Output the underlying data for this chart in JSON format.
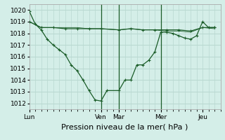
{
  "background_color": "#d4eee8",
  "grid_color": "#b8d8d0",
  "line_color": "#1a5c28",
  "xlabel": "Pression niveau de la mer( hPa )",
  "ylim": [
    1011.5,
    1020.5
  ],
  "yticks": [
    1012,
    1013,
    1014,
    1015,
    1016,
    1017,
    1018,
    1019,
    1020
  ],
  "day_labels": [
    "Lun",
    "Ven",
    "Mar",
    "Mer",
    "Jeu"
  ],
  "day_tick_positions": [
    0,
    24,
    30,
    44,
    58
  ],
  "vline_positions": [
    24,
    30,
    44
  ],
  "xlim": [
    0,
    64
  ],
  "series1_x": [
    0,
    2,
    4,
    6,
    8,
    10,
    12,
    14,
    16,
    18,
    20,
    22,
    24,
    26,
    30,
    32,
    34,
    36,
    38,
    40,
    42,
    44,
    46,
    48,
    50,
    52,
    54,
    56,
    58,
    60,
    62
  ],
  "series1_y": [
    1019.9,
    1018.8,
    1018.3,
    1017.5,
    1017.0,
    1016.6,
    1016.2,
    1015.3,
    1014.8,
    1014.0,
    1013.1,
    1012.3,
    1012.2,
    1013.1,
    1013.1,
    1014.0,
    1014.0,
    1015.3,
    1015.3,
    1015.7,
    1016.4,
    1018.1,
    1018.1,
    1018.0,
    1017.8,
    1017.6,
    1017.5,
    1017.8,
    1019.0,
    1018.5,
    1018.5
  ],
  "series2_x": [
    0,
    4,
    8,
    12,
    16,
    20,
    24,
    30,
    34,
    38,
    42,
    46,
    50,
    54,
    58,
    62
  ],
  "series2_y": [
    1019.0,
    1018.5,
    1018.5,
    1018.4,
    1018.4,
    1018.4,
    1018.4,
    1018.3,
    1018.4,
    1018.3,
    1018.3,
    1018.3,
    1018.3,
    1018.2,
    1018.5,
    1018.5
  ],
  "series3_x": [
    0,
    4,
    8,
    12,
    16,
    20,
    24,
    30,
    34,
    38,
    42,
    46,
    50,
    54,
    58,
    62
  ],
  "series3_y": [
    1019.0,
    1018.5,
    1018.5,
    1018.5,
    1018.5,
    1018.4,
    1018.4,
    1018.3,
    1018.4,
    1018.3,
    1018.3,
    1018.2,
    1018.2,
    1018.1,
    1018.5,
    1018.4
  ],
  "xlabel_fontsize": 8,
  "tick_fontsize": 6.5
}
